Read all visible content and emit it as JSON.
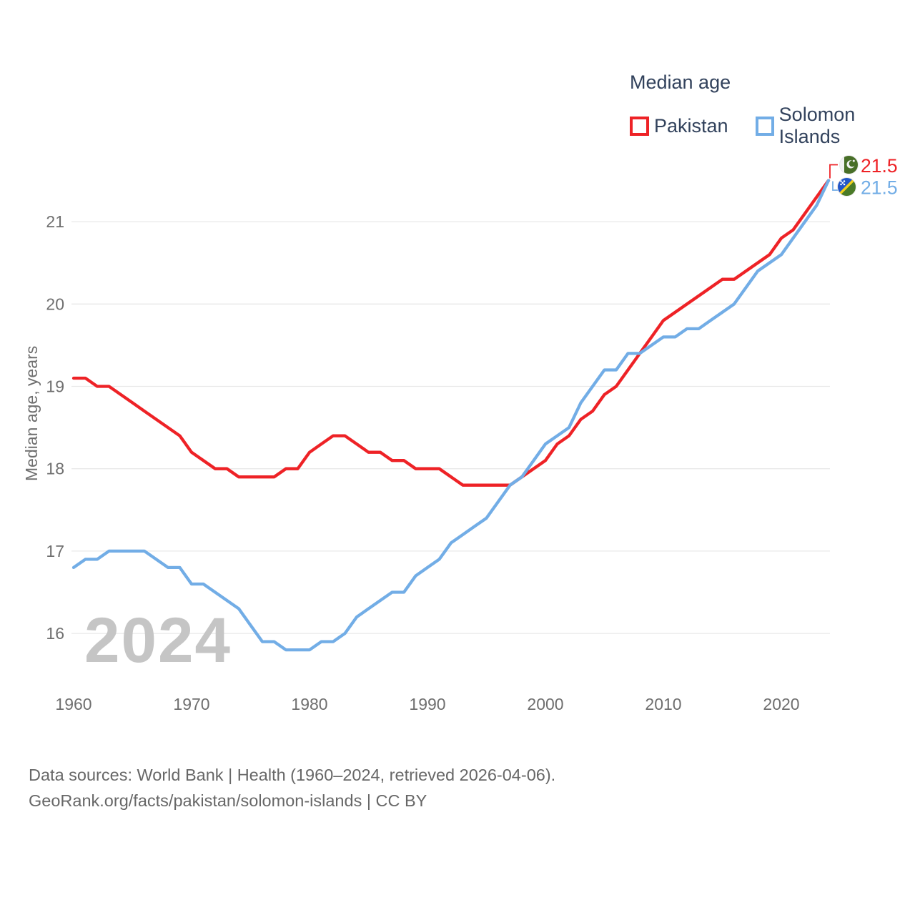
{
  "watermark": "2024",
  "legend": {
    "title": "Median age",
    "items": [
      {
        "label": "Pakistan",
        "color": "#ee2226"
      },
      {
        "label": "Solomon Islands",
        "color": "#72ade6"
      }
    ]
  },
  "end_labels": [
    {
      "value": "21.5",
      "color": "#ee2226",
      "flag": "pakistan-flag-icon"
    },
    {
      "value": "21.5",
      "color": "#72ade6",
      "flag": "solomon-islands-flag-icon"
    }
  ],
  "flags": {
    "pakistan": {
      "green": "#486f28",
      "white": "#f2f2f2"
    },
    "solomon_islands": {
      "blue": "#2156c8",
      "green": "#4a7a28",
      "yellow": "#f2d11b",
      "white": "#ffffff"
    }
  },
  "footer": {
    "line1": "Data sources: World Bank | Health (1960–2024, retrieved 2026-04-06).",
    "line2": "GeoRank.org/facts/pakistan/solomon-islands | CC BY"
  },
  "chart_data": {
    "type": "line",
    "title": "Median age",
    "ylabel": "Median age, years",
    "x_start": 1960,
    "x_end": 2024,
    "xticks": [
      1960,
      1970,
      1980,
      1990,
      2000,
      2010,
      2020
    ],
    "yticks": [
      16,
      17,
      18,
      19,
      20,
      21
    ],
    "ylim": [
      15.55,
      21.8
    ],
    "grid": "horizontal",
    "legend_position": "top-right",
    "colors": {
      "grid": "#e9e9e9",
      "tick_text": "#6f6f6f"
    },
    "series": [
      {
        "name": "Pakistan",
        "color": "#ee2226",
        "values": [
          19.1,
          19.1,
          19.0,
          19.0,
          18.9,
          18.8,
          18.7,
          18.6,
          18.5,
          18.4,
          18.2,
          18.1,
          18.0,
          18.0,
          17.9,
          17.9,
          17.9,
          17.9,
          18.0,
          18.0,
          18.2,
          18.3,
          18.4,
          18.4,
          18.3,
          18.2,
          18.2,
          18.1,
          18.1,
          18.0,
          18.0,
          18.0,
          17.9,
          17.8,
          17.8,
          17.8,
          17.8,
          17.8,
          17.9,
          18.0,
          18.1,
          18.3,
          18.4,
          18.6,
          18.7,
          18.9,
          19.0,
          19.2,
          19.4,
          19.6,
          19.8,
          19.9,
          20.0,
          20.1,
          20.2,
          20.3,
          20.3,
          20.4,
          20.5,
          20.6,
          20.8,
          20.9,
          21.1,
          21.3,
          21.5
        ]
      },
      {
        "name": "Solomon Islands",
        "color": "#72ade6",
        "values": [
          16.8,
          16.9,
          16.9,
          17.0,
          17.0,
          17.0,
          17.0,
          16.9,
          16.8,
          16.8,
          16.6,
          16.6,
          16.5,
          16.4,
          16.3,
          16.1,
          15.9,
          15.9,
          15.8,
          15.8,
          15.8,
          15.9,
          15.9,
          16.0,
          16.2,
          16.3,
          16.4,
          16.5,
          16.5,
          16.7,
          16.8,
          16.9,
          17.1,
          17.2,
          17.3,
          17.4,
          17.6,
          17.8,
          17.9,
          18.1,
          18.3,
          18.4,
          18.5,
          18.8,
          19.0,
          19.2,
          19.2,
          19.4,
          19.4,
          19.5,
          19.6,
          19.6,
          19.7,
          19.7,
          19.8,
          19.9,
          20.0,
          20.2,
          20.4,
          20.5,
          20.6,
          20.8,
          21.0,
          21.2,
          21.5
        ]
      }
    ]
  }
}
